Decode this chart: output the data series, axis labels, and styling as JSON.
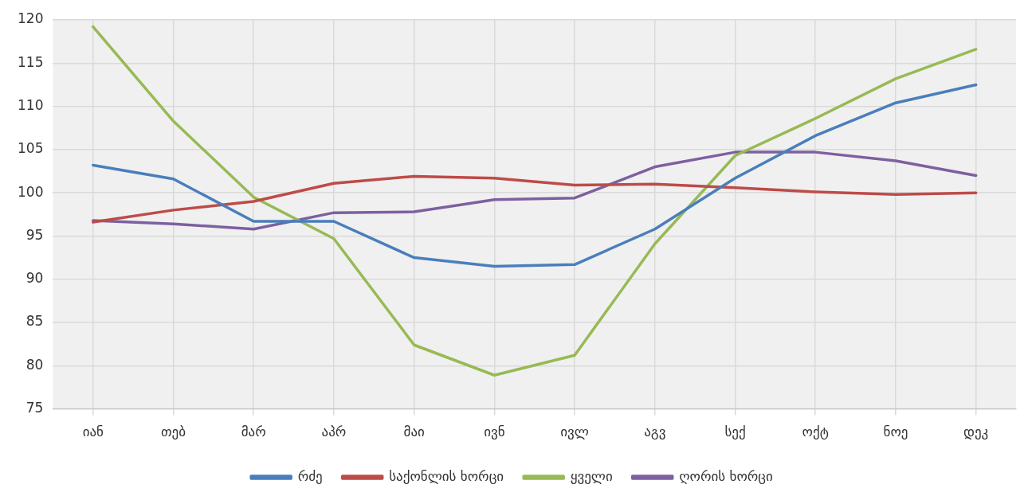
{
  "chart_data": {
    "type": "line",
    "categories": [
      "იან",
      "თებ",
      "მარ",
      "აპრ",
      "მაი",
      "ივნ",
      "ივლ",
      "აგვ",
      "სექ",
      "ოქტ",
      "ნოე",
      "დეკ"
    ],
    "series": [
      {
        "name": "რძე",
        "color": "#4a7ebb",
        "values": [
          103.2,
          101.6,
          96.7,
          96.7,
          92.5,
          91.5,
          91.7,
          95.8,
          101.7,
          106.6,
          110.4,
          112.5
        ]
      },
      {
        "name": "საქონლის ხორცი",
        "color": "#be4b48",
        "values": [
          96.6,
          98.0,
          99.0,
          101.1,
          101.9,
          101.7,
          100.9,
          101.0,
          100.6,
          100.1,
          99.8,
          100.0
        ]
      },
      {
        "name": "ყველი",
        "color": "#98b954",
        "values": [
          119.2,
          108.3,
          99.5,
          94.7,
          82.4,
          78.9,
          81.2,
          94.1,
          104.3,
          108.6,
          113.2,
          116.6
        ]
      },
      {
        "name": "ღორის ხორცი",
        "color": "#7d60a0",
        "values": [
          96.8,
          96.4,
          95.8,
          97.7,
          97.8,
          99.2,
          99.4,
          103.0,
          104.7,
          104.7,
          103.7,
          102.0
        ]
      }
    ],
    "ylim": [
      75,
      120
    ],
    "yticks": [
      75,
      80,
      85,
      90,
      95,
      100,
      105,
      110,
      115,
      120
    ],
    "grid": true,
    "legend": "bottom",
    "marker": "none",
    "line_style": "solid"
  }
}
